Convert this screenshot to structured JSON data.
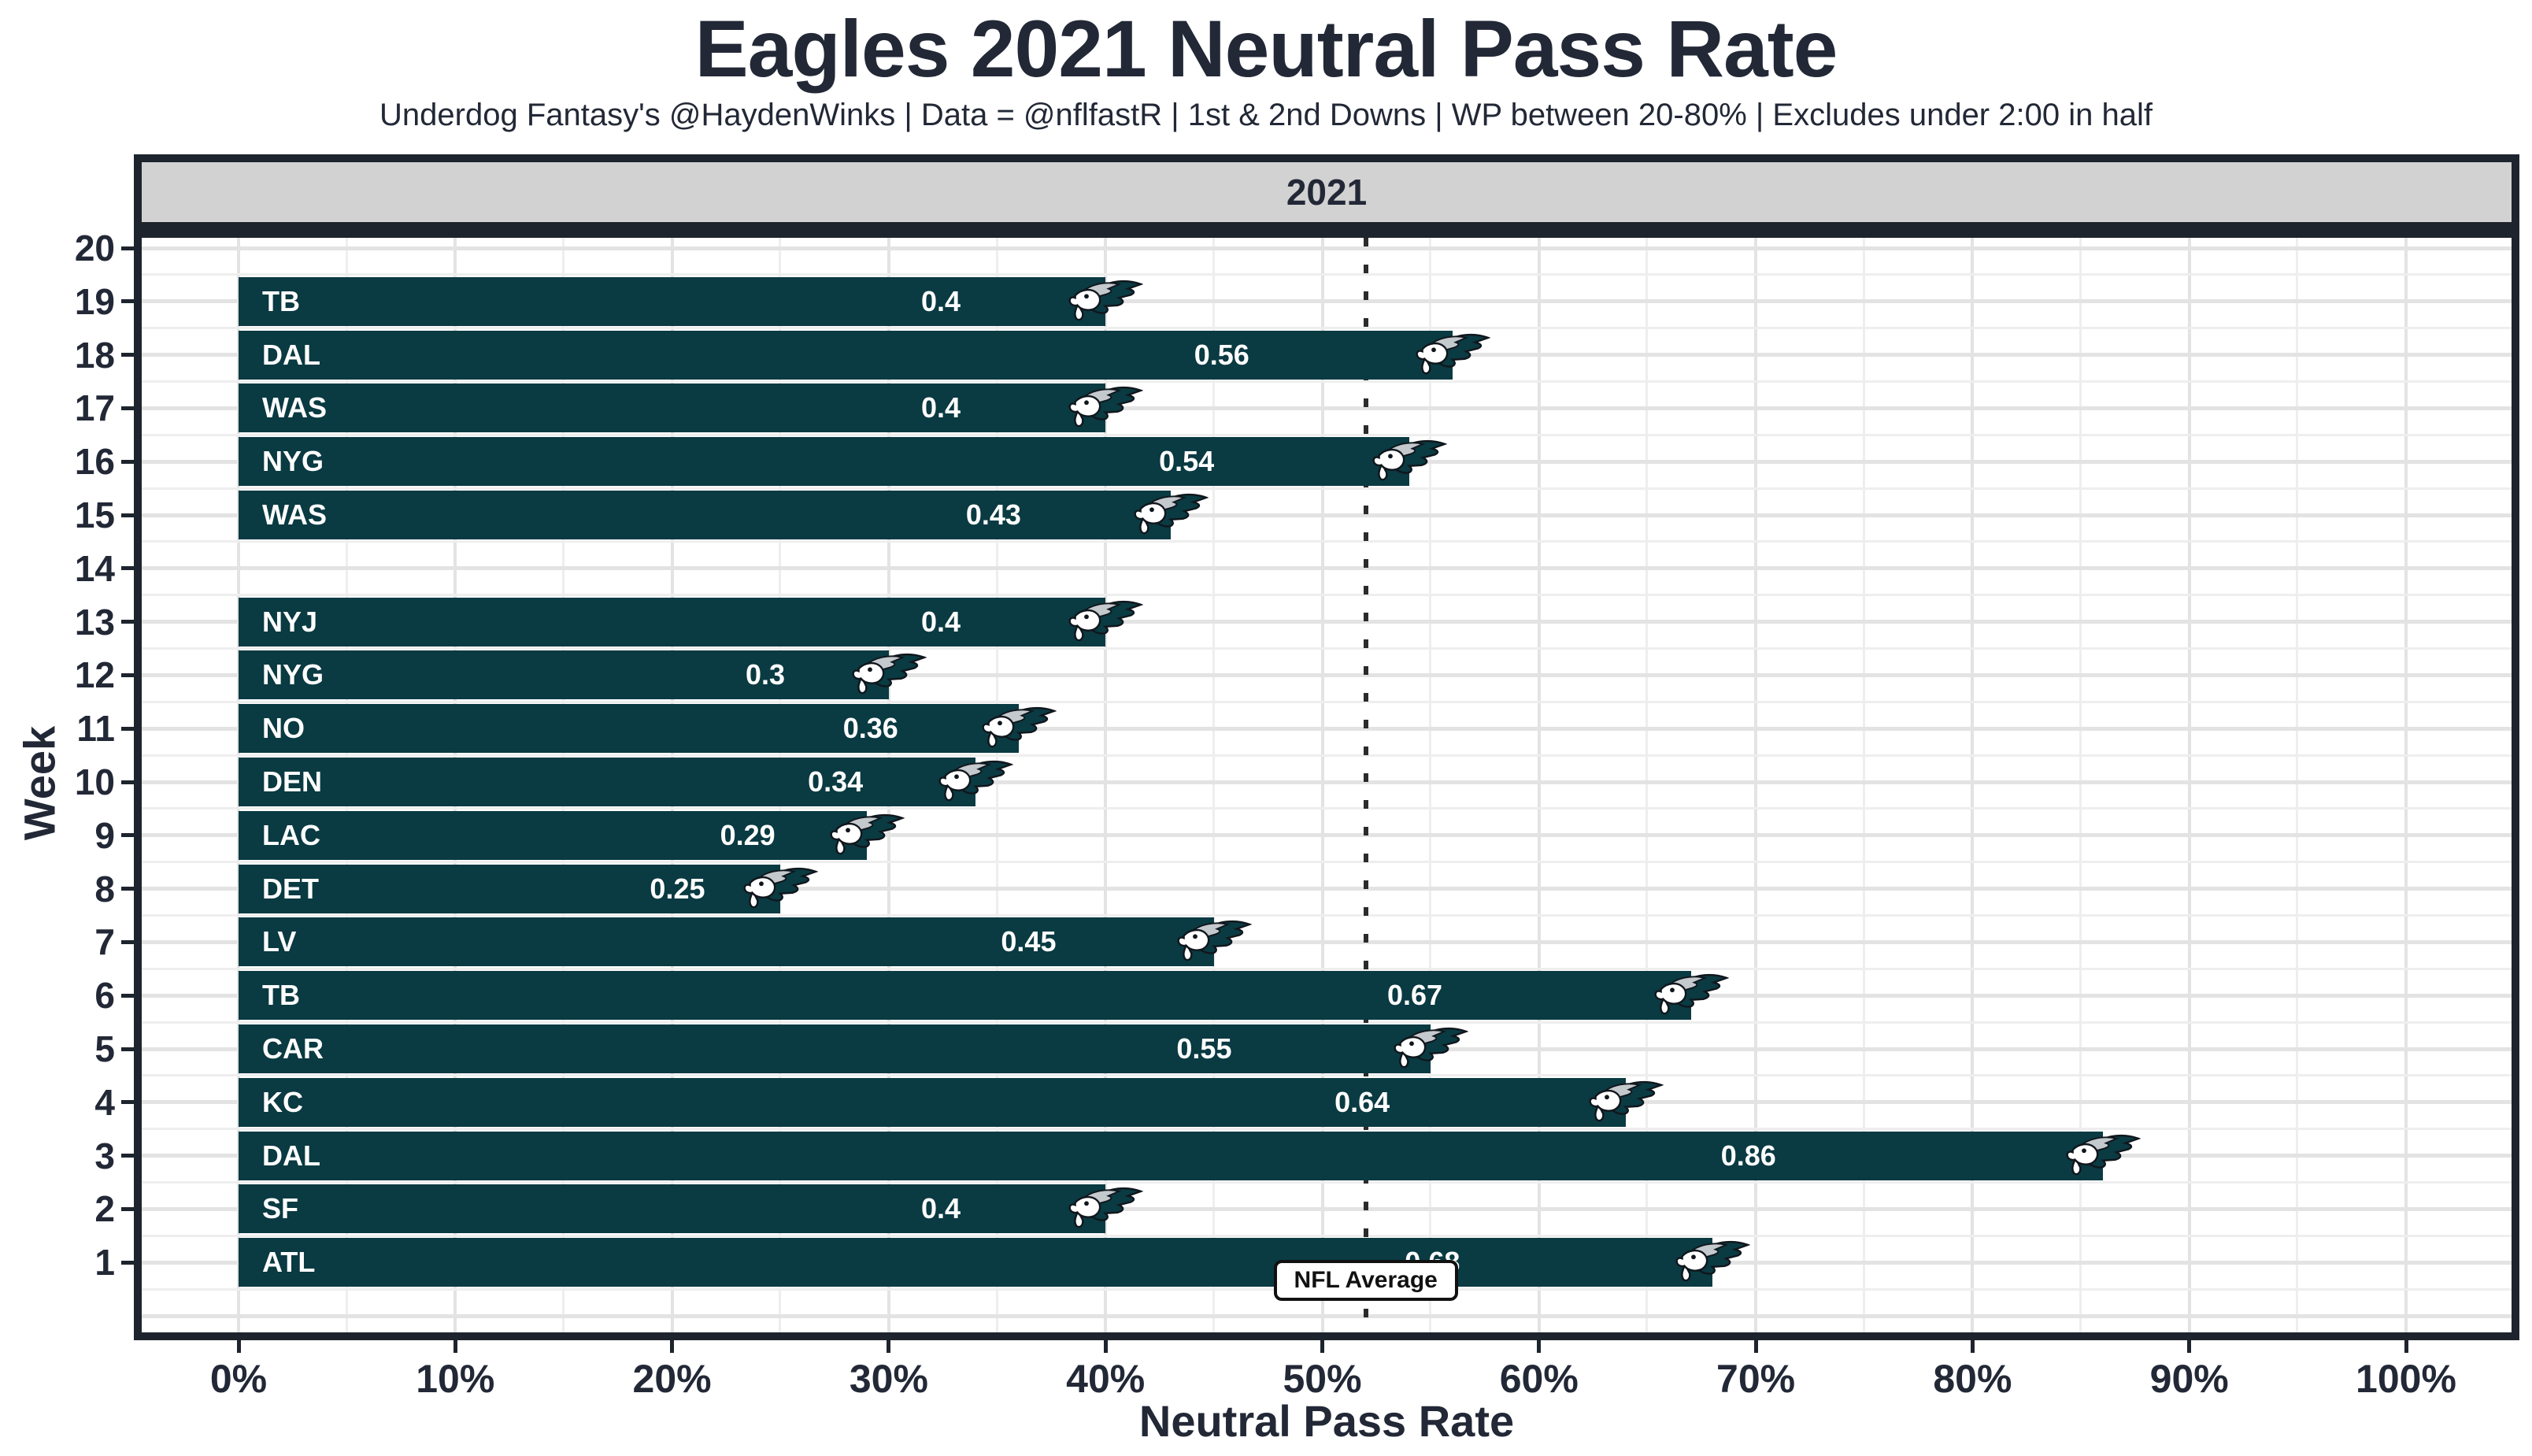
{
  "title": "Eagles 2021 Neutral Pass Rate",
  "subtitle": "Underdog Fantasy's @HaydenWinks | Data = @nflfastR | 1st & 2nd Downs | WP between 20-80% | Excludes under 2:00 in half",
  "facet_label": "2021",
  "axes": {
    "x_title": "Neutral Pass Rate",
    "y_title": "Week",
    "x_ticks": [
      {
        "label": "0%",
        "value": 0.0
      },
      {
        "label": "10%",
        "value": 0.1
      },
      {
        "label": "20%",
        "value": 0.2
      },
      {
        "label": "30%",
        "value": 0.3
      },
      {
        "label": "40%",
        "value": 0.4
      },
      {
        "label": "50%",
        "value": 0.5
      },
      {
        "label": "60%",
        "value": 0.6
      },
      {
        "label": "70%",
        "value": 0.7
      },
      {
        "label": "80%",
        "value": 0.8
      },
      {
        "label": "90%",
        "value": 0.9
      },
      {
        "label": "100%",
        "value": 1.0
      }
    ],
    "y_ticks": [
      "20",
      "19",
      "18",
      "17",
      "16",
      "15",
      "14",
      "13",
      "12",
      "11",
      "10",
      "9",
      "8",
      "7",
      "6",
      "5",
      "4",
      "3",
      "2",
      "1"
    ]
  },
  "reference_line": {
    "label": "NFL Average",
    "value": 0.52
  },
  "colors": {
    "bar": "#0a3a42",
    "dark": "#1e242e",
    "text": "#222836",
    "strip_bg": "#d2d2d2",
    "grid_major": "#e3e3e3",
    "grid_minor": "#eeeeee",
    "bar_label": "#ffffff",
    "eagle_green": "#0a3a42",
    "eagle_silver": "#c3c9cd",
    "eagle_outline": "#10161c"
  },
  "chart_data": {
    "type": "bar",
    "orientation": "horizontal",
    "title": "Eagles 2021 Neutral Pass Rate",
    "xlabel": "Neutral Pass Rate",
    "ylabel": "Week",
    "xlim": [
      0,
      1.09
    ],
    "ylim": [
      0,
      20.5
    ],
    "grid": true,
    "x_tick_values": [
      0,
      0.1,
      0.2,
      0.3,
      0.4,
      0.5,
      0.6,
      0.7,
      0.8,
      0.9,
      1.0
    ],
    "weeks_without_bar": [
      20,
      14
    ],
    "reference_line": {
      "label": "NFL Average",
      "value": 0.52
    },
    "rows": [
      {
        "week": 19,
        "team": "TB",
        "value": 0.4,
        "value_label": "0.4"
      },
      {
        "week": 18,
        "team": "DAL",
        "value": 0.56,
        "value_label": "0.56"
      },
      {
        "week": 17,
        "team": "WAS",
        "value": 0.4,
        "value_label": "0.4"
      },
      {
        "week": 16,
        "team": "NYG",
        "value": 0.54,
        "value_label": "0.54"
      },
      {
        "week": 15,
        "team": "WAS",
        "value": 0.43,
        "value_label": "0.43"
      },
      {
        "week": 13,
        "team": "NYJ",
        "value": 0.4,
        "value_label": "0.4"
      },
      {
        "week": 12,
        "team": "NYG",
        "value": 0.3,
        "value_label": "0.3"
      },
      {
        "week": 11,
        "team": "NO",
        "value": 0.36,
        "value_label": "0.36"
      },
      {
        "week": 10,
        "team": "DEN",
        "value": 0.34,
        "value_label": "0.34"
      },
      {
        "week": 9,
        "team": "LAC",
        "value": 0.29,
        "value_label": "0.29"
      },
      {
        "week": 8,
        "team": "DET",
        "value": 0.25,
        "value_label": "0.25"
      },
      {
        "week": 7,
        "team": "LV",
        "value": 0.45,
        "value_label": "0.45"
      },
      {
        "week": 6,
        "team": "TB",
        "value": 0.67,
        "value_label": "0.67"
      },
      {
        "week": 5,
        "team": "CAR",
        "value": 0.55,
        "value_label": "0.55"
      },
      {
        "week": 4,
        "team": "KC",
        "value": 0.64,
        "value_label": "0.64"
      },
      {
        "week": 3,
        "team": "DAL",
        "value": 0.86,
        "value_label": "0.86"
      },
      {
        "week": 2,
        "team": "SF",
        "value": 0.4,
        "value_label": "0.4"
      },
      {
        "week": 1,
        "team": "ATL",
        "value": 0.68,
        "value_label": "0.68"
      }
    ]
  }
}
